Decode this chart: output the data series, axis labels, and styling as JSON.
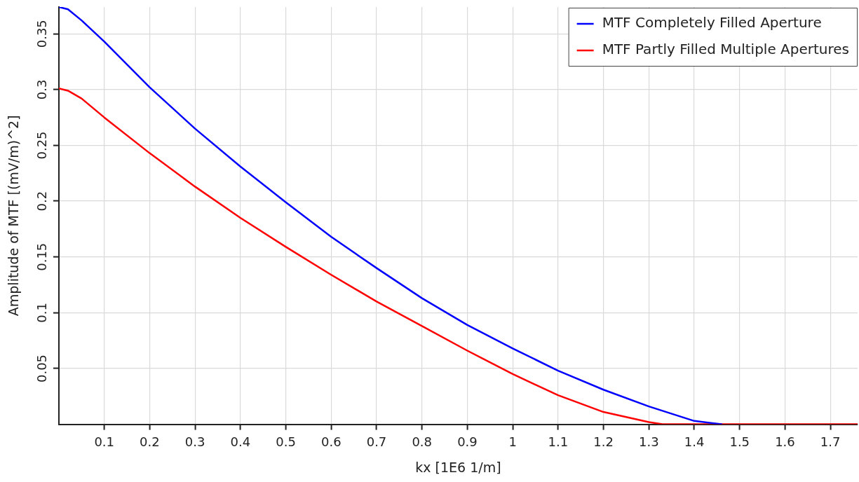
{
  "chart_data": {
    "type": "line",
    "xlabel": "kx [1E6 1/m]",
    "ylabel": "Amplitude of MTF [(mV/m)^2]",
    "xlim": [
      0,
      1.76
    ],
    "ylim": [
      0,
      0.374
    ],
    "xticks": [
      0.1,
      0.2,
      0.3,
      0.4,
      0.5,
      0.6,
      0.7,
      0.8,
      0.9,
      1,
      1.1,
      1.2,
      1.3,
      1.4,
      1.5,
      1.6,
      1.7
    ],
    "yticks": [
      0.05,
      0.1,
      0.15,
      0.2,
      0.25,
      0.3,
      0.35
    ],
    "grid": true,
    "legend": "top right",
    "marker": "none",
    "line_style": "solid",
    "series": [
      {
        "name": "MTF Completely Filled Aperture",
        "color": "#0000ff",
        "x": [
          0,
          0.02,
          0.05,
          0.1,
          0.2,
          0.3,
          0.4,
          0.5,
          0.6,
          0.7,
          0.8,
          0.9,
          1,
          1.1,
          1.2,
          1.3,
          1.4,
          1.45,
          1.46
        ],
        "values": [
          0.374,
          0.372,
          0.362,
          0.343,
          0.302,
          0.265,
          0.231,
          0.199,
          0.168,
          0.14,
          0.113,
          0.089,
          0.068,
          0.048,
          0.031,
          0.016,
          0.003,
          0.0005,
          0
        ]
      },
      {
        "name": "MTF Partly Filled Multiple Apertures",
        "color": "#ff0000",
        "x": [
          0,
          0.02,
          0.05,
          0.1,
          0.2,
          0.3,
          0.4,
          0.5,
          0.6,
          0.7,
          0.8,
          0.9,
          1,
          1.1,
          1.2,
          1.3,
          1.33,
          1.76
        ],
        "values": [
          0.301,
          0.299,
          0.292,
          0.275,
          0.243,
          0.213,
          0.185,
          0.159,
          0.134,
          0.11,
          0.088,
          0.066,
          0.045,
          0.026,
          0.011,
          0.002,
          0,
          0
        ]
      }
    ]
  }
}
